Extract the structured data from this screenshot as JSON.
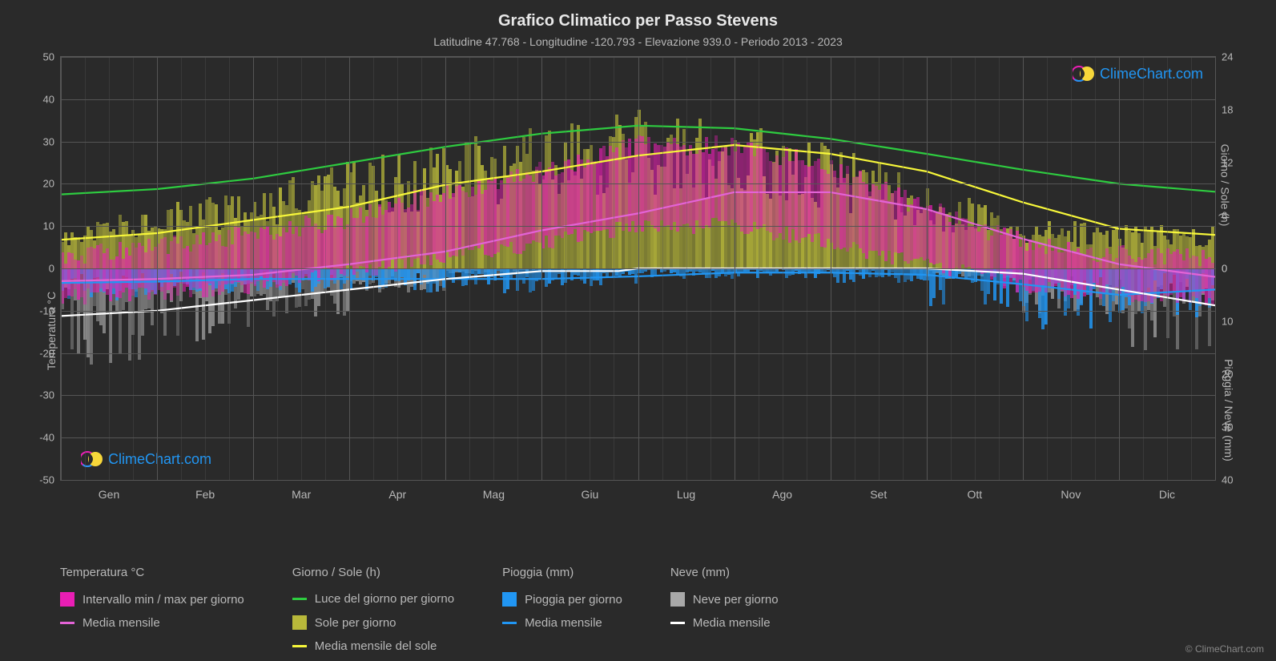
{
  "title": "Grafico Climatico per Passo Stevens",
  "subtitle": "Latitudine 47.768 - Longitudine -120.793 - Elevazione 939.0 - Periodo 2013 - 2023",
  "axis_left_title": "Temperatura °C",
  "axis_right_top_title": "Giorno / Sole (h)",
  "axis_right_bottom_title": "Pioggia / Neve (mm)",
  "watermark_text": "ClimeChart.com",
  "copyright": "© ClimeChart.com",
  "colors": {
    "background": "#2a2a2a",
    "grid": "#555555",
    "text": "#b8b8b8",
    "title": "#e8e8e8",
    "temp_range": "#e91eb4",
    "temp_mean": "#e363d6",
    "daylight": "#2ecc40",
    "sun_fill": "#b8b83a",
    "sun_mean": "#f7f73a",
    "rain_fill": "#2196f3",
    "rain_mean": "#2196f3",
    "snow_fill": "#a8a8a8",
    "snow_mean": "#ffffff",
    "watermark": "#2196f3"
  },
  "y_left": {
    "min": -50,
    "max": 50,
    "step": 10,
    "ticks": [
      -50,
      -40,
      -30,
      -20,
      -10,
      0,
      10,
      20,
      30,
      40,
      50
    ]
  },
  "y_right_top": {
    "min": 0,
    "max": 24,
    "step": 6,
    "ticks": [
      0,
      6,
      12,
      18,
      24
    ]
  },
  "y_right_bottom": {
    "min": 0,
    "max": 40,
    "step": 10,
    "ticks": [
      0,
      10,
      20,
      30,
      40
    ]
  },
  "months": [
    "Gen",
    "Feb",
    "Mar",
    "Apr",
    "Mag",
    "Giu",
    "Lug",
    "Ago",
    "Set",
    "Ott",
    "Nov",
    "Dic"
  ],
  "series": {
    "daylight_h": [
      9.0,
      10.2,
      12.0,
      13.8,
      15.3,
      16.2,
      15.9,
      14.7,
      13.0,
      11.2,
      9.6,
      8.7
    ],
    "sun_h": [
      4.0,
      5.5,
      7.0,
      9.5,
      11.0,
      12.8,
      14.0,
      13.0,
      11.0,
      7.5,
      4.5,
      3.8
    ],
    "temp_mean": [
      -2.5,
      -1.5,
      1.0,
      4.0,
      9.0,
      13.0,
      18.0,
      18.0,
      14.0,
      7.0,
      1.0,
      -2.0
    ],
    "temp_min": [
      -7,
      -6,
      -4,
      -1,
      3,
      6,
      10,
      10,
      6,
      1,
      -4,
      -6
    ],
    "temp_max": [
      3,
      5,
      8,
      12,
      18,
      23,
      29,
      29,
      24,
      14,
      6,
      3
    ],
    "rain_mm": [
      2.5,
      2.0,
      2.0,
      2.0,
      2.0,
      1.5,
      0.8,
      0.8,
      1.2,
      3.0,
      5.0,
      4.0
    ],
    "snow_mm": [
      8,
      6,
      4,
      2,
      0.5,
      0,
      0,
      0,
      0,
      1,
      4,
      7
    ]
  },
  "legend": {
    "col1_title": "Temperatura °C",
    "col1_items": [
      {
        "type": "swatch",
        "color": "#e91eb4",
        "label": "Intervallo min / max per giorno"
      },
      {
        "type": "line",
        "color": "#e363d6",
        "label": "Media mensile"
      }
    ],
    "col2_title": "Giorno / Sole (h)",
    "col2_items": [
      {
        "type": "line",
        "color": "#2ecc40",
        "label": "Luce del giorno per giorno"
      },
      {
        "type": "swatch",
        "color": "#b8b83a",
        "label": "Sole per giorno"
      },
      {
        "type": "line",
        "color": "#f7f73a",
        "label": "Media mensile del sole"
      }
    ],
    "col3_title": "Pioggia (mm)",
    "col3_items": [
      {
        "type": "swatch",
        "color": "#2196f3",
        "label": "Pioggia per giorno"
      },
      {
        "type": "line",
        "color": "#2196f3",
        "label": "Media mensile"
      }
    ],
    "col4_title": "Neve (mm)",
    "col4_items": [
      {
        "type": "swatch",
        "color": "#a8a8a8",
        "label": "Neve per giorno"
      },
      {
        "type": "line",
        "color": "#ffffff",
        "label": "Media mensile"
      }
    ]
  }
}
